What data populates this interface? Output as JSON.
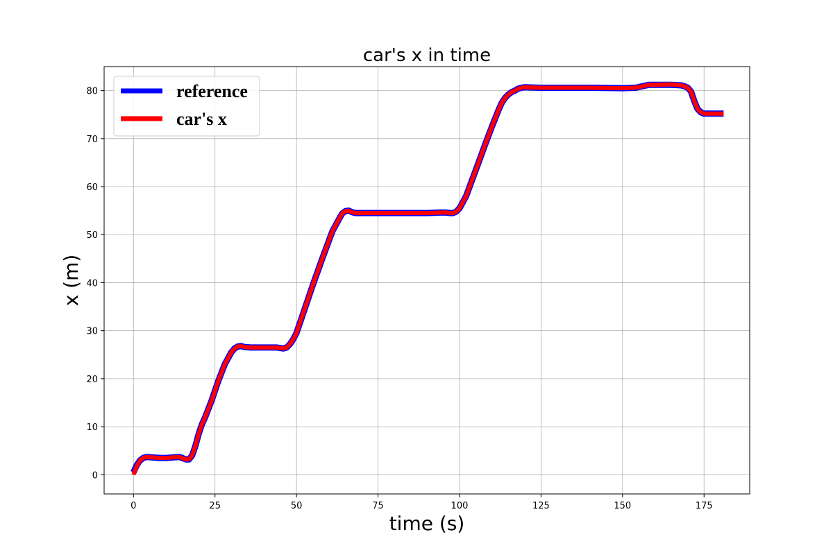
{
  "chart_data": {
    "type": "line",
    "title": "car's x in time",
    "xlabel": "time (s)",
    "ylabel": "x (m)",
    "xlim": [
      -9,
      189
    ],
    "ylim": [
      -4,
      85
    ],
    "xticks": [
      0,
      25,
      50,
      75,
      100,
      125,
      150,
      175
    ],
    "yticks": [
      0,
      10,
      20,
      30,
      40,
      50,
      60,
      70,
      80
    ],
    "grid": true,
    "legend_position": "top-left",
    "series": [
      {
        "name": "reference",
        "color": "#0000ff",
        "x": [
          0,
          1,
          2,
          3,
          4,
          6,
          8,
          10,
          12,
          14,
          15,
          16,
          17,
          18,
          19,
          20,
          21,
          22,
          24,
          26,
          28,
          30,
          31,
          32,
          33,
          34,
          36,
          40,
          44,
          46,
          47,
          48,
          49,
          50,
          52,
          55,
          58,
          61,
          63,
          64,
          65,
          66,
          67,
          68,
          70,
          75,
          80,
          85,
          90,
          94,
          96,
          97,
          98,
          99,
          100,
          102,
          105,
          108,
          110,
          112,
          113,
          114,
          115,
          116,
          117,
          118,
          119,
          120,
          125,
          130,
          140,
          150,
          154,
          156,
          158,
          160,
          165,
          168,
          169,
          170,
          171,
          172,
          173,
          174,
          175,
          176,
          178,
          181
        ],
        "y": [
          0.5,
          2.0,
          3.0,
          3.5,
          3.7,
          3.6,
          3.5,
          3.5,
          3.6,
          3.7,
          3.5,
          3.2,
          3.2,
          4.0,
          6.0,
          8.5,
          10.5,
          12.0,
          15.5,
          19.5,
          23.0,
          25.5,
          26.3,
          26.7,
          26.8,
          26.6,
          26.5,
          26.5,
          26.5,
          26.3,
          26.5,
          27.2,
          28.2,
          29.5,
          33.5,
          39.5,
          45.2,
          50.7,
          53.2,
          54.4,
          54.9,
          55.0,
          54.7,
          54.5,
          54.5,
          54.5,
          54.5,
          54.5,
          54.5,
          54.6,
          54.6,
          54.5,
          54.5,
          54.8,
          55.5,
          58.0,
          63.5,
          69.0,
          72.6,
          76.0,
          77.5,
          78.5,
          79.2,
          79.7,
          80.0,
          80.4,
          80.6,
          80.7,
          80.6,
          80.6,
          80.6,
          80.5,
          80.6,
          80.9,
          81.2,
          81.2,
          81.2,
          81.1,
          80.9,
          80.6,
          79.8,
          77.8,
          76.2,
          75.5,
          75.2,
          75.2,
          75.2,
          75.2
        ]
      },
      {
        "name": "car's x",
        "color": "#ff0000",
        "x": [
          0,
          1,
          2,
          3,
          4,
          6,
          8,
          10,
          12,
          14,
          15,
          16,
          17,
          18,
          19,
          20,
          21,
          22,
          24,
          26,
          28,
          30,
          31,
          32,
          33,
          34,
          36,
          40,
          44,
          46,
          47,
          48,
          49,
          50,
          52,
          55,
          58,
          61,
          63,
          64,
          65,
          66,
          67,
          68,
          70,
          75,
          80,
          85,
          90,
          94,
          96,
          97,
          98,
          99,
          100,
          102,
          105,
          108,
          110,
          112,
          113,
          114,
          115,
          116,
          117,
          118,
          119,
          120,
          125,
          130,
          140,
          150,
          154,
          156,
          158,
          160,
          165,
          168,
          169,
          170,
          171,
          172,
          173,
          174,
          175,
          176,
          178,
          181
        ],
        "y": [
          0.0,
          1.8,
          3.0,
          3.5,
          3.7,
          3.6,
          3.5,
          3.5,
          3.6,
          3.7,
          3.5,
          3.2,
          3.2,
          4.0,
          6.0,
          8.5,
          10.5,
          12.0,
          15.5,
          19.5,
          23.0,
          25.5,
          26.3,
          26.7,
          26.8,
          26.6,
          26.5,
          26.5,
          26.5,
          26.3,
          26.5,
          27.2,
          28.2,
          29.5,
          33.5,
          39.5,
          45.2,
          50.7,
          53.2,
          54.4,
          54.9,
          55.0,
          54.7,
          54.5,
          54.5,
          54.5,
          54.5,
          54.5,
          54.5,
          54.6,
          54.6,
          54.5,
          54.5,
          54.8,
          55.5,
          58.0,
          63.5,
          69.0,
          72.6,
          76.0,
          77.5,
          78.5,
          79.2,
          79.7,
          80.0,
          80.4,
          80.6,
          80.7,
          80.6,
          80.6,
          80.6,
          80.5,
          80.6,
          80.9,
          81.2,
          81.2,
          81.3,
          81.1,
          80.9,
          80.6,
          79.8,
          77.8,
          76.2,
          75.5,
          75.2,
          75.2,
          75.2,
          75.2
        ]
      }
    ]
  }
}
